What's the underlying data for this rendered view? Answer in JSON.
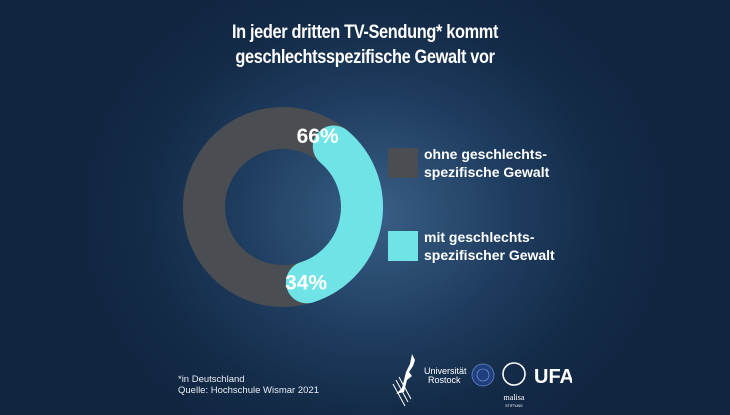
{
  "title": {
    "line1": "In jeder dritten TV-Sendung* kommt",
    "line2": "geschlechtsspezifische Gewalt vor"
  },
  "chart_data": {
    "type": "pie",
    "donut": true,
    "title": "In jeder dritten TV-Sendung* kommt geschlechtsspezifische Gewalt vor",
    "categories": [
      "ohne geschlechtsspezifische Gewalt",
      "mit geschlechtsspezifischer Gewalt"
    ],
    "values": [
      66,
      34
    ],
    "value_labels": [
      "66%",
      "34%"
    ],
    "legend": [
      {
        "label": "ohne geschlechts-\nspezifische Gewalt",
        "color": "#4a4d52"
      },
      {
        "label": "mit geschlechts-\nspezifischer Gewalt",
        "color": "#6fe3e6"
      }
    ],
    "legend_position": "right"
  },
  "footnote": {
    "line1": "*in Deutschland",
    "line2": "Quelle: Hochschule Wismar 2021"
  },
  "logos": {
    "universitaet": "Universität",
    "rostock": "Rostock",
    "malisa": "malisa",
    "stiftung": "STIFTUNG",
    "ufa": "UFA"
  },
  "colors": {
    "background": "#142c49",
    "without_violence": "#4a4d52",
    "with_violence": "#6fe3e6",
    "text": "#ffffff"
  }
}
